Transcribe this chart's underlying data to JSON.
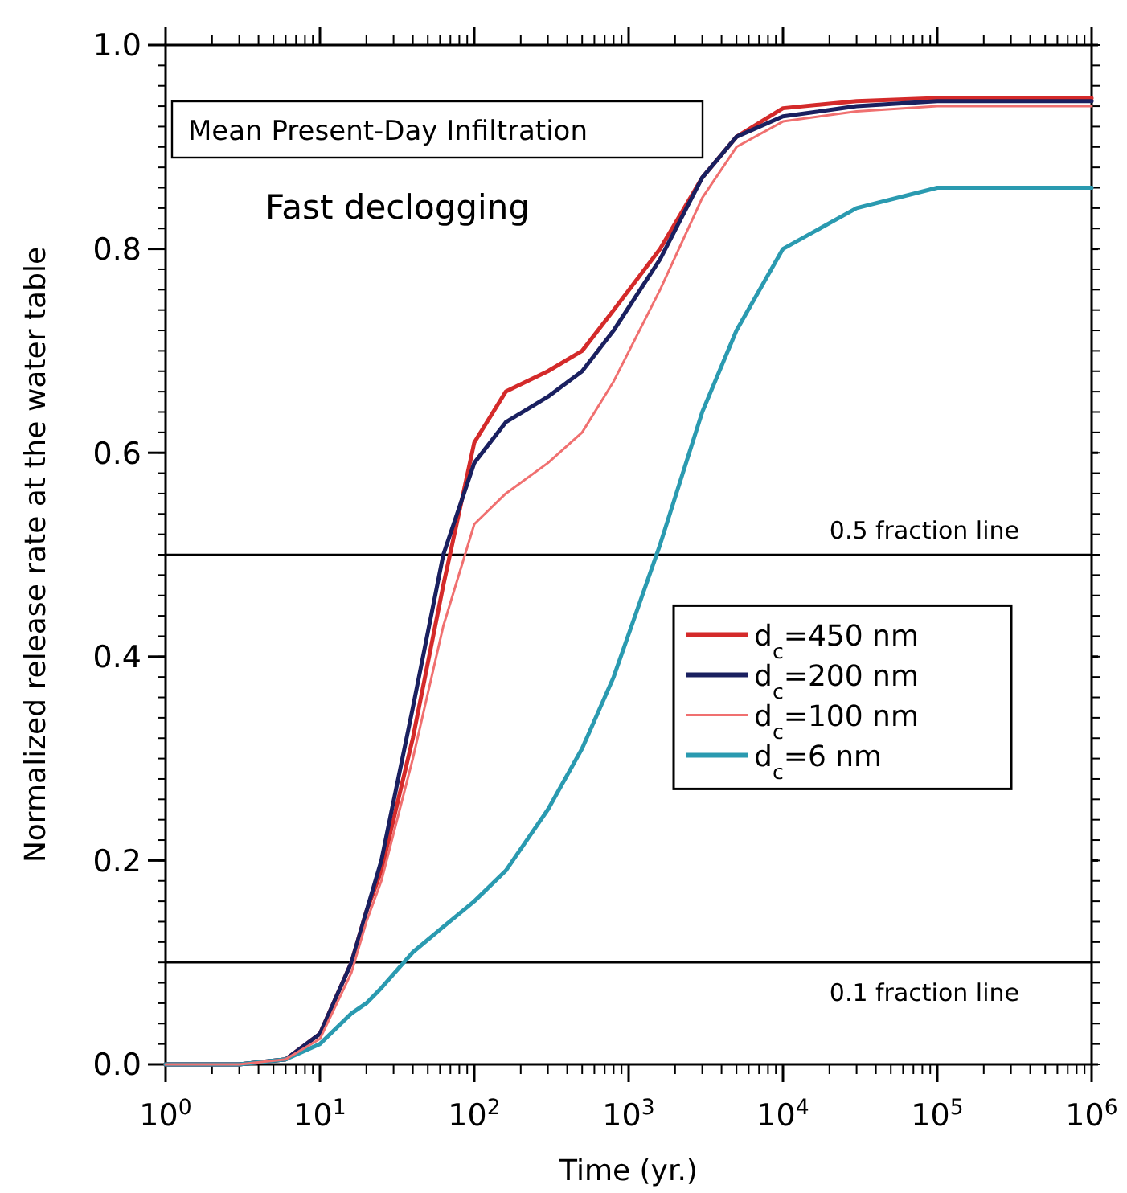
{
  "chart_data": {
    "type": "line",
    "xlabel": "Time (yr.)",
    "ylabel": "Normalized release rate at the water table",
    "annotations": [
      "Mean Present-Day Infiltration",
      "Fast declogging"
    ],
    "log": "x",
    "xlim": [
      1,
      1000000
    ],
    "ylim": [
      0,
      1
    ],
    "xticks": [
      {
        "value": 1,
        "label": "10$^{0}$"
      },
      {
        "value": 10,
        "label": "10$^{1}$"
      },
      {
        "value": 100,
        "label": "10$^{2}$"
      },
      {
        "value": 1000,
        "label": "10$^{3}$"
      },
      {
        "value": 10000,
        "label": "10$^{4}$"
      },
      {
        "value": 100000,
        "label": "10$^{5}$"
      },
      {
        "value": 1000000,
        "label": "10$^{6}$"
      }
    ],
    "yticks": [
      {
        "value": 0,
        "label": "0.0"
      },
      {
        "value": 0.2,
        "label": "0.2"
      },
      {
        "value": 0.4,
        "label": "0.4"
      },
      {
        "value": 0.6,
        "label": "0.6"
      },
      {
        "value": 0.8,
        "label": "0.8"
      },
      {
        "value": 1,
        "label": "1.0"
      }
    ],
    "grid": false,
    "legend": "right",
    "marker": "none",
    "line_style": "solid",
    "ref_lines": [
      {
        "axis": "y",
        "value": 0.5,
        "label": "0.5 fraction line",
        "color": "#000000"
      },
      {
        "axis": "y",
        "value": 0.1,
        "label": "0.1 fraction line",
        "color": "#000000"
      }
    ],
    "x": [
      1,
      3,
      6,
      10,
      16,
      20,
      25,
      40,
      63,
      100,
      160,
      300,
      500,
      800,
      1600,
      3000,
      5000,
      10000,
      30000,
      100000,
      1000000
    ],
    "series": [
      {
        "name": "d$_{c}$=450 nm",
        "color": "#d42a2a",
        "values": [
          0,
          0,
          0.005,
          0.03,
          0.1,
          0.15,
          0.19,
          0.32,
          0.47,
          0.61,
          0.66,
          0.68,
          0.7,
          0.74,
          0.8,
          0.87,
          0.91,
          0.938,
          0.945,
          0.948,
          0.948
        ]
      },
      {
        "name": "d$_{c}$=200 nm",
        "color": "#1a2060",
        "values": [
          0,
          0,
          0.005,
          0.03,
          0.1,
          0.15,
          0.2,
          0.35,
          0.5,
          0.59,
          0.63,
          0.655,
          0.68,
          0.72,
          0.79,
          0.87,
          0.91,
          0.93,
          0.94,
          0.945,
          0.945
        ]
      },
      {
        "name": "d$_{c}$=100 nm",
        "color": "#f07070",
        "values": [
          0,
          0,
          0.005,
          0.025,
          0.09,
          0.14,
          0.18,
          0.3,
          0.43,
          0.53,
          0.56,
          0.59,
          0.62,
          0.67,
          0.76,
          0.85,
          0.9,
          0.925,
          0.935,
          0.94,
          0.94
        ]
      },
      {
        "name": "d$_{c}$=6 nm",
        "color": "#2a9ab0",
        "values": [
          0,
          0,
          0.005,
          0.02,
          0.05,
          0.06,
          0.075,
          0.11,
          0.135,
          0.16,
          0.19,
          0.25,
          0.31,
          0.38,
          0.51,
          0.64,
          0.72,
          0.8,
          0.84,
          0.86,
          0.86
        ]
      }
    ]
  }
}
